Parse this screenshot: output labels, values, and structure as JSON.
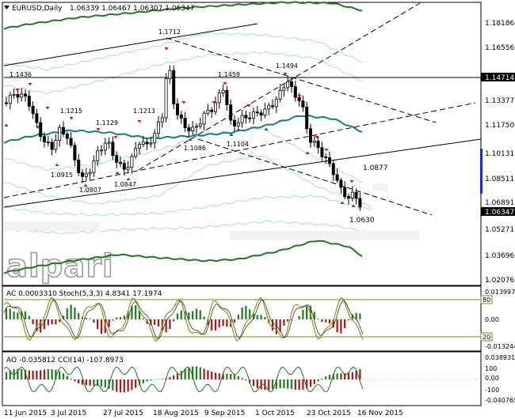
{
  "header": {
    "symbol": "EURUSD,Daily",
    "ohlc": "1.06339 1.06467 1.06307 1.06347",
    "arrow_icon": "triangle-down-icon"
  },
  "logo": {
    "text": "alpari"
  },
  "price_axis": {
    "labels": [
      "1.18186",
      "1.16556",
      "1.14714",
      "1.13377",
      "1.11750",
      "1.10131",
      "1.08511",
      "1.06891",
      "1.06347",
      "1.05271",
      "1.03696",
      "1.02076"
    ],
    "highlighted": "1.14714",
    "current": "1.06347"
  },
  "annotations": {
    "peaks": [
      "1.1436",
      "1.1712",
      "1.1459",
      "1.1494",
      "1.1215",
      "1.1129",
      "1.1213"
    ],
    "troughs": [
      "1.0915",
      "1.0807",
      "1.0847",
      "1.1086",
      "1.1104"
    ],
    "right": [
      "1.0877",
      "1.0630"
    ]
  },
  "ac_panel": {
    "title": "AC 0.0003310  Stoch(5,3,3) 4.8341 17.1974",
    "axis": [
      "0.013997",
      "0.00",
      "-0.013244"
    ],
    "level_high": "80",
    "level_low": "20"
  },
  "ao_panel": {
    "title": "AO -0.035812  CCI(14) -107.8973",
    "axis": [
      "0.038931",
      "100",
      "0.00",
      "-100",
      "-0.040765"
    ]
  },
  "time_axis": {
    "labels": [
      "11 Jun 2015",
      "3 Jul 2015",
      "27 Jul 2015",
      "18 Aug 2015",
      "9 Sep 2015",
      "1 Oct 2015",
      "23 Oct 2015",
      "16 Nov 2015"
    ]
  },
  "colors": {
    "bull_candle": "#ffffff",
    "bear_candle": "#000000",
    "green_band": "#1e7a1e",
    "teal_ma": "#13807a",
    "light_band": "#a8dbe0",
    "oscillator_line": "#8a9a1a",
    "bar_red": "#a01818",
    "bar_green": "#1f7a1f",
    "level_line": "#6b8e23",
    "scroll_marker": "#1e2fb4"
  }
}
